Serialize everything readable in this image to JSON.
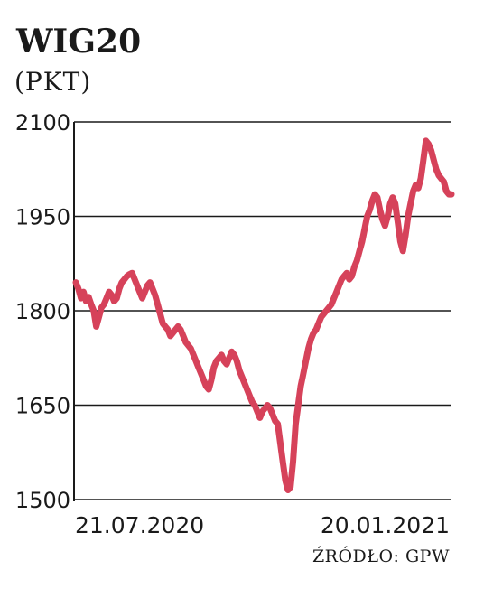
{
  "chart_data": {
    "type": "line",
    "title": "WIG20",
    "subtitle": "(PKT)",
    "source": "ŹRÓDŁO: GPW",
    "y_ticks": [
      "2100",
      "1950",
      "1800",
      "1650",
      "1500"
    ],
    "ylim": [
      1500,
      2100
    ],
    "x_tick_labels": [
      "21.07.2020",
      "20.01.2021"
    ],
    "grid": "horizontal",
    "line_color": "#d6425a",
    "series": [
      {
        "values": [
          1845,
          1835,
          1820,
          1830,
          1815,
          1822,
          1810,
          1800,
          1775,
          1790,
          1805,
          1810,
          1820,
          1830,
          1825,
          1815,
          1820,
          1835,
          1845,
          1850,
          1855,
          1858,
          1860,
          1850,
          1840,
          1830,
          1820,
          1830,
          1840,
          1845,
          1835,
          1825,
          1810,
          1795,
          1780,
          1775,
          1770,
          1760,
          1765,
          1770,
          1775,
          1770,
          1760,
          1750,
          1745,
          1740,
          1730,
          1720,
          1710,
          1700,
          1690,
          1680,
          1675,
          1690,
          1710,
          1720,
          1725,
          1730,
          1720,
          1715,
          1725,
          1735,
          1730,
          1720,
          1705,
          1695,
          1685,
          1675,
          1665,
          1655,
          1650,
          1640,
          1630,
          1640,
          1645,
          1650,
          1645,
          1635,
          1625,
          1620,
          1590,
          1560,
          1530,
          1515,
          1520,
          1560,
          1620,
          1650,
          1680,
          1700,
          1720,
          1740,
          1755,
          1765,
          1770,
          1780,
          1790,
          1795,
          1800,
          1805,
          1810,
          1820,
          1830,
          1840,
          1850,
          1855,
          1860,
          1850,
          1855,
          1870,
          1880,
          1895,
          1910,
          1930,
          1950,
          1960,
          1975,
          1985,
          1980,
          1960,
          1945,
          1935,
          1950,
          1970,
          1980,
          1970,
          1940,
          1910,
          1895,
          1920,
          1950,
          1970,
          1990,
          2000,
          1995,
          2010,
          2040,
          2070,
          2065,
          2055,
          2040,
          2025,
          2015,
          2010,
          2005,
          1990,
          1985,
          1985
        ]
      }
    ]
  }
}
